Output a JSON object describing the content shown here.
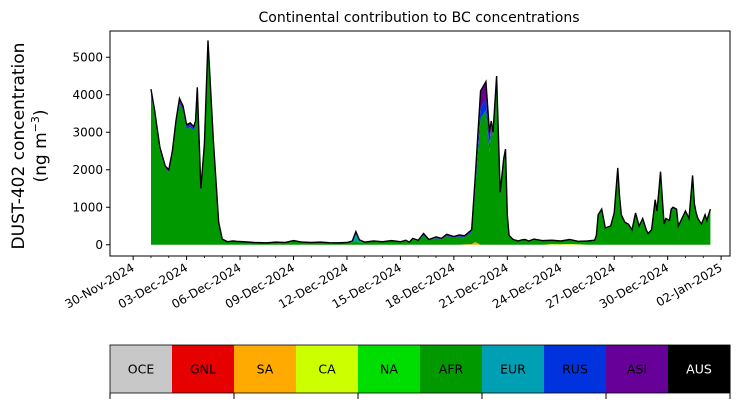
{
  "chart_data": {
    "type": "area",
    "title": "Continental contribution to BC concentrations",
    "ylabel_line1": "DUST-402 concentration",
    "ylabel_line2_prefix": "(ng m",
    "ylabel_line2_sup": "−3",
    "ylabel_line2_suffix": ")",
    "xlabel": "",
    "ylim": [
      -300,
      5700
    ],
    "yticks": [
      0,
      1000,
      2000,
      3000,
      4000,
      5000
    ],
    "xlim_days": [
      -1.3,
      33.5
    ],
    "x_tick_labels": [
      "30-Nov-2024",
      "03-Dec-2024",
      "06-Dec-2024",
      "09-Dec-2024",
      "12-Dec-2024",
      "15-Dec-2024",
      "18-Dec-2024",
      "21-Dec-2024",
      "24-Dec-2024",
      "27-Dec-2024",
      "30-Dec-2024",
      "02-Jan-2025"
    ],
    "x_tick_days": [
      0,
      3,
      6,
      9,
      12,
      15,
      18,
      21,
      24,
      27,
      30,
      33
    ],
    "grid": false,
    "total": {
      "x": [
        1.0,
        1.2,
        1.5,
        1.8,
        2.0,
        2.2,
        2.4,
        2.6,
        2.8,
        3.0,
        3.2,
        3.4,
        3.5,
        3.6,
        3.8,
        4.0,
        4.2,
        4.5,
        4.8,
        5.0,
        5.3,
        5.6,
        5.8,
        6.2,
        6.8,
        7.5,
        8.0,
        8.5,
        9.0,
        9.5,
        10.0,
        10.5,
        11.0,
        11.5,
        12.0,
        12.3,
        12.5,
        12.7,
        13.0,
        13.5,
        14.0,
        14.5,
        15.0,
        15.3,
        15.5,
        15.7,
        16.0,
        16.3,
        16.6,
        17.0,
        17.3,
        17.6,
        18.0,
        18.3,
        18.6,
        19.0,
        19.2,
        19.5,
        19.8,
        20.0,
        20.1,
        20.2,
        20.4,
        20.6,
        20.8,
        20.9,
        21.0,
        21.1,
        21.3,
        21.4,
        21.5,
        21.6,
        21.8,
        22.0,
        22.2,
        22.5,
        23.0,
        23.5,
        24.0,
        24.5,
        25.0,
        25.5,
        25.9,
        26.0,
        26.1,
        26.3,
        26.5,
        26.8,
        27.0,
        27.2,
        27.3,
        27.4,
        27.6,
        27.8,
        28.0,
        28.2,
        28.4,
        28.6,
        28.8,
        28.9,
        29.1,
        29.3,
        29.4,
        29.5,
        29.6,
        29.8,
        29.9,
        30.1,
        30.2,
        30.3,
        30.5,
        30.6,
        30.8,
        31.0,
        31.2,
        31.4,
        31.5,
        31.6,
        31.7,
        31.9,
        32.1,
        32.2,
        32.4
      ],
      "y": [
        4150,
        3600,
        2600,
        2100,
        2000,
        2500,
        3300,
        3900,
        3700,
        3200,
        3250,
        3150,
        3300,
        4200,
        1500,
        2700,
        5450,
        2800,
        600,
        150,
        80,
        100,
        90,
        80,
        60,
        50,
        70,
        60,
        110,
        70,
        60,
        70,
        55,
        50,
        60,
        100,
        350,
        130,
        70,
        100,
        80,
        110,
        80,
        120,
        70,
        170,
        120,
        300,
        140,
        210,
        170,
        280,
        220,
        260,
        240,
        400,
        1800,
        4100,
        4350,
        3000,
        3300,
        3000,
        4500,
        1400,
        2300,
        2550,
        800,
        250,
        150,
        130,
        120,
        100,
        130,
        140,
        100,
        150,
        110,
        120,
        100,
        140,
        90,
        100,
        120,
        250,
        800,
        950,
        450,
        500,
        850,
        2050,
        1300,
        800,
        600,
        550,
        400,
        850,
        500,
        700,
        400,
        300,
        400,
        1200,
        900,
        1400,
        1950,
        550,
        700,
        650,
        950,
        1000,
        950,
        500,
        700,
        900,
        700,
        1850,
        1100,
        850,
        700,
        550,
        800,
        650,
        950
      ]
    },
    "series": [
      {
        "name": "OCE",
        "color": "#c8c8c8"
      },
      {
        "name": "GNL",
        "color": "#e60000"
      },
      {
        "name": "SA",
        "color": "#ffaa00"
      },
      {
        "name": "CA",
        "color": "#ccff00"
      },
      {
        "name": "NA",
        "color": "#00dd00"
      },
      {
        "name": "AFR",
        "color": "#009900"
      },
      {
        "name": "EUR",
        "color": "#00a0b4"
      },
      {
        "name": "RUS",
        "color": "#0033dd"
      },
      {
        "name": "ASI",
        "color": "#660099"
      },
      {
        "name": "AUS",
        "color": "#000000"
      }
    ],
    "legend_placement": "bottom"
  }
}
